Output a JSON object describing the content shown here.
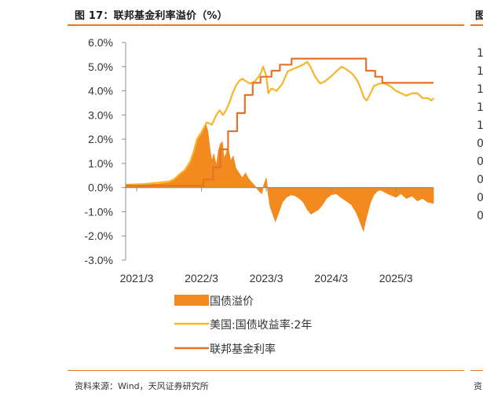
{
  "title": "图 17：联邦基金利率溢价（%）",
  "next_panel": {
    "title_fragment": "图",
    "source_fragment": "资",
    "tick_fragments": [
      "1",
      "1",
      "1",
      "1",
      "1",
      "0",
      "0",
      "0",
      "0",
      "0"
    ]
  },
  "source": "资料来源：Wind，天风证券研究所",
  "colors": {
    "accent": "#e87722",
    "premium": "#f28a1f",
    "yield_2y": "#f7b52c",
    "fed_funds": "#e8712a",
    "axis": "#8c8c8c"
  },
  "chart_data": {
    "type": "area+line",
    "title": "联邦基金利率溢价（%）",
    "x_start": 2021.0,
    "x_end": 2025.75,
    "xticks": [
      {
        "value": 2021.17,
        "label": "2021/3"
      },
      {
        "value": 2022.17,
        "label": "2022/3"
      },
      {
        "value": 2023.17,
        "label": "2023/3"
      },
      {
        "value": 2024.17,
        "label": "2024/3"
      },
      {
        "value": 2025.17,
        "label": "2025/3"
      }
    ],
    "ylim": [
      -3.0,
      6.0
    ],
    "yticks": [
      {
        "value": 6,
        "label": "6.0%"
      },
      {
        "value": 5,
        "label": "5.0%"
      },
      {
        "value": 4,
        "label": "4.0%"
      },
      {
        "value": 3,
        "label": "3.0%"
      },
      {
        "value": 2,
        "label": "2.0%"
      },
      {
        "value": 1,
        "label": "1.0%"
      },
      {
        "value": 0,
        "label": "0.0%"
      },
      {
        "value": -1,
        "label": "-1.0%"
      },
      {
        "value": -2,
        "label": "-2.0%"
      },
      {
        "value": -3,
        "label": "-3.0%"
      }
    ],
    "series": [
      {
        "name": "国债溢价",
        "kind": "area",
        "points": [
          [
            2021.0,
            0.1
          ],
          [
            2021.25,
            0.12
          ],
          [
            2021.5,
            0.15
          ],
          [
            2021.67,
            0.2
          ],
          [
            2021.75,
            0.3
          ],
          [
            2021.83,
            0.5
          ],
          [
            2021.92,
            0.7
          ],
          [
            2022.0,
            1.0
          ],
          [
            2022.05,
            1.5
          ],
          [
            2022.08,
            1.8
          ],
          [
            2022.12,
            2.0
          ],
          [
            2022.17,
            2.2
          ],
          [
            2022.21,
            2.4
          ],
          [
            2022.24,
            2.6
          ],
          [
            2022.27,
            2.3
          ],
          [
            2022.3,
            1.6
          ],
          [
            2022.33,
            1.1
          ],
          [
            2022.36,
            1.4
          ],
          [
            2022.4,
            0.9
          ],
          [
            2022.43,
            1.5
          ],
          [
            2022.46,
            1.8
          ],
          [
            2022.49,
            1.9
          ],
          [
            2022.52,
            1.2
          ],
          [
            2022.55,
            1.4
          ],
          [
            2022.58,
            1.7
          ],
          [
            2022.62,
            1.1
          ],
          [
            2022.66,
            1.3
          ],
          [
            2022.7,
            0.8
          ],
          [
            2022.75,
            0.6
          ],
          [
            2022.8,
            0.4
          ],
          [
            2022.85,
            0.6
          ],
          [
            2022.9,
            0.35
          ],
          [
            2022.95,
            0.2
          ],
          [
            2023.0,
            0.05
          ],
          [
            2023.06,
            -0.15
          ],
          [
            2023.1,
            -0.25
          ],
          [
            2023.13,
            0.1
          ],
          [
            2023.17,
            0.4
          ],
          [
            2023.2,
            -0.3
          ],
          [
            2023.23,
            -0.8
          ],
          [
            2023.27,
            -1.1
          ],
          [
            2023.31,
            -1.4
          ],
          [
            2023.34,
            -1.2
          ],
          [
            2023.38,
            -0.9
          ],
          [
            2023.42,
            -0.6
          ],
          [
            2023.48,
            -0.4
          ],
          [
            2023.55,
            -0.3
          ],
          [
            2023.62,
            -0.35
          ],
          [
            2023.68,
            -0.45
          ],
          [
            2023.74,
            -0.6
          ],
          [
            2023.8,
            -0.9
          ],
          [
            2023.86,
            -1.1
          ],
          [
            2023.92,
            -1.0
          ],
          [
            2023.98,
            -0.9
          ],
          [
            2024.04,
            -0.7
          ],
          [
            2024.1,
            -0.45
          ],
          [
            2024.17,
            -0.3
          ],
          [
            2024.25,
            -0.25
          ],
          [
            2024.32,
            -0.4
          ],
          [
            2024.4,
            -0.55
          ],
          [
            2024.48,
            -0.7
          ],
          [
            2024.55,
            -1.0
          ],
          [
            2024.6,
            -1.3
          ],
          [
            2024.64,
            -1.6
          ],
          [
            2024.67,
            -1.8
          ],
          [
            2024.7,
            -1.4
          ],
          [
            2024.74,
            -1.0
          ],
          [
            2024.78,
            -0.6
          ],
          [
            2024.83,
            -0.3
          ],
          [
            2024.88,
            -0.15
          ],
          [
            2024.93,
            -0.1
          ],
          [
            2025.0,
            -0.2
          ],
          [
            2025.08,
            -0.3
          ],
          [
            2025.17,
            -0.4
          ],
          [
            2025.25,
            -0.25
          ],
          [
            2025.33,
            -0.45
          ],
          [
            2025.42,
            -0.35
          ],
          [
            2025.5,
            -0.55
          ],
          [
            2025.58,
            -0.45
          ],
          [
            2025.66,
            -0.6
          ],
          [
            2025.75,
            -0.65
          ]
        ]
      },
      {
        "name": "美国:国债收益率:2年",
        "kind": "line",
        "points": [
          [
            2021.0,
            0.12
          ],
          [
            2021.25,
            0.14
          ],
          [
            2021.5,
            0.2
          ],
          [
            2021.67,
            0.25
          ],
          [
            2021.75,
            0.35
          ],
          [
            2021.83,
            0.55
          ],
          [
            2021.92,
            0.75
          ],
          [
            2022.0,
            1.1
          ],
          [
            2022.05,
            1.5
          ],
          [
            2022.1,
            2.0
          ],
          [
            2022.17,
            2.3
          ],
          [
            2022.25,
            2.7
          ],
          [
            2022.33,
            2.6
          ],
          [
            2022.4,
            3.0
          ],
          [
            2022.45,
            3.2
          ],
          [
            2022.5,
            3.0
          ],
          [
            2022.55,
            3.2
          ],
          [
            2022.6,
            3.5
          ],
          [
            2022.65,
            3.9
          ],
          [
            2022.7,
            4.2
          ],
          [
            2022.75,
            4.4
          ],
          [
            2022.8,
            4.5
          ],
          [
            2022.85,
            4.4
          ],
          [
            2022.92,
            4.3
          ],
          [
            2023.0,
            4.4
          ],
          [
            2023.08,
            4.7
          ],
          [
            2023.12,
            5.0
          ],
          [
            2023.17,
            4.6
          ],
          [
            2023.2,
            3.9
          ],
          [
            2023.25,
            4.1
          ],
          [
            2023.33,
            4.0
          ],
          [
            2023.42,
            4.3
          ],
          [
            2023.5,
            4.8
          ],
          [
            2023.58,
            4.9
          ],
          [
            2023.67,
            5.0
          ],
          [
            2023.75,
            5.1
          ],
          [
            2023.8,
            5.2
          ],
          [
            2023.85,
            5.0
          ],
          [
            2023.92,
            4.6
          ],
          [
            2024.0,
            4.3
          ],
          [
            2024.08,
            4.4
          ],
          [
            2024.17,
            4.6
          ],
          [
            2024.25,
            4.8
          ],
          [
            2024.33,
            5.0
          ],
          [
            2024.4,
            4.9
          ],
          [
            2024.5,
            4.7
          ],
          [
            2024.58,
            4.4
          ],
          [
            2024.64,
            4.0
          ],
          [
            2024.68,
            3.7
          ],
          [
            2024.72,
            3.6
          ],
          [
            2024.78,
            3.9
          ],
          [
            2024.83,
            4.2
          ],
          [
            2024.92,
            4.3
          ],
          [
            2025.0,
            4.3
          ],
          [
            2025.08,
            4.2
          ],
          [
            2025.17,
            4.0
          ],
          [
            2025.25,
            3.9
          ],
          [
            2025.33,
            3.8
          ],
          [
            2025.42,
            3.9
          ],
          [
            2025.5,
            3.9
          ],
          [
            2025.58,
            3.7
          ],
          [
            2025.66,
            3.7
          ],
          [
            2025.72,
            3.6
          ],
          [
            2025.75,
            3.7
          ]
        ]
      },
      {
        "name": "联邦基金利率",
        "kind": "step",
        "points": [
          [
            2021.0,
            0.08
          ],
          [
            2022.2,
            0.08
          ],
          [
            2022.2,
            0.33
          ],
          [
            2022.35,
            0.33
          ],
          [
            2022.35,
            0.83
          ],
          [
            2022.46,
            0.83
          ],
          [
            2022.46,
            1.58
          ],
          [
            2022.58,
            1.58
          ],
          [
            2022.58,
            2.33
          ],
          [
            2022.72,
            2.33
          ],
          [
            2022.72,
            3.08
          ],
          [
            2022.84,
            3.08
          ],
          [
            2022.84,
            3.83
          ],
          [
            2022.96,
            3.83
          ],
          [
            2022.96,
            4.33
          ],
          [
            2023.08,
            4.33
          ],
          [
            2023.08,
            4.58
          ],
          [
            2023.25,
            4.58
          ],
          [
            2023.25,
            4.83
          ],
          [
            2023.38,
            4.83
          ],
          [
            2023.38,
            5.08
          ],
          [
            2023.56,
            5.08
          ],
          [
            2023.56,
            5.33
          ],
          [
            2024.71,
            5.33
          ],
          [
            2024.71,
            4.83
          ],
          [
            2024.85,
            4.83
          ],
          [
            2024.85,
            4.58
          ],
          [
            2024.96,
            4.58
          ],
          [
            2024.96,
            4.33
          ],
          [
            2025.75,
            4.33
          ]
        ]
      }
    ],
    "legend": [
      {
        "label": "国债溢价",
        "kind": "area"
      },
      {
        "label": "美国:国债收益率:2年",
        "kind": "line"
      },
      {
        "label": "联邦基金利率",
        "kind": "line"
      }
    ],
    "legend_position": "bottom"
  }
}
